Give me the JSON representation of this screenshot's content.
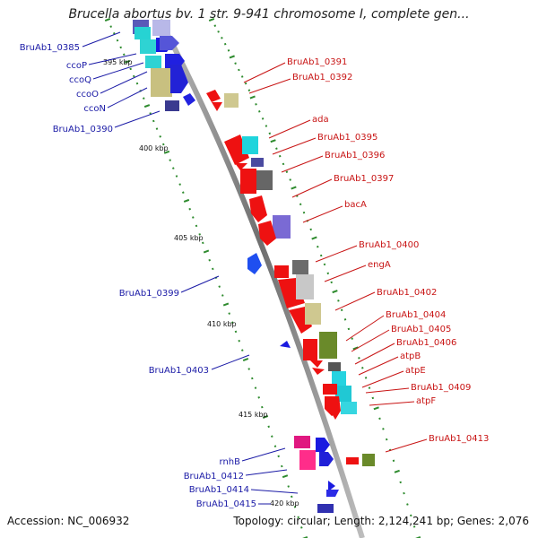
{
  "title": "Brucella abortus bv. 1 str. 9-941 chromosome I, complete gen...",
  "footer": {
    "accession": "Accession: NC_006932",
    "summary": "Topology: circular; Length: 2,124,241 bp; Genes: 2,076"
  },
  "colors": {
    "backbone": "#8a8a8a",
    "forward_label": "#1a1aa6",
    "reverse_label": "#c81414",
    "tick": "#2e8b2e"
  },
  "kbp_labels": [
    "395 kbp",
    "400 kbp",
    "405 kbp",
    "410 kbp",
    "415 kbp",
    "420 kbp"
  ],
  "left_labels": [
    "BruAb1_0385",
    "ccoP",
    "ccoQ",
    "ccoO",
    "ccoN",
    "BruAb1_0390",
    "BruAb1_0399",
    "BruAb1_0403",
    "rnhB",
    "BruAb1_0412",
    "BruAb1_0414",
    "BruAb1_0415"
  ],
  "right_labels": [
    "BruAb1_0391",
    "BruAb1_0392",
    "ada",
    "BruAb1_0395",
    "BruAb1_0396",
    "BruAb1_0397",
    "bacA",
    "BruAb1_0400",
    "engA",
    "BruAb1_0402",
    "BruAb1_0404",
    "BruAb1_0405",
    "BruAb1_0406",
    "atpB",
    "atpE",
    "BruAb1_0409",
    "atpF",
    "BruAb1_0413"
  ]
}
